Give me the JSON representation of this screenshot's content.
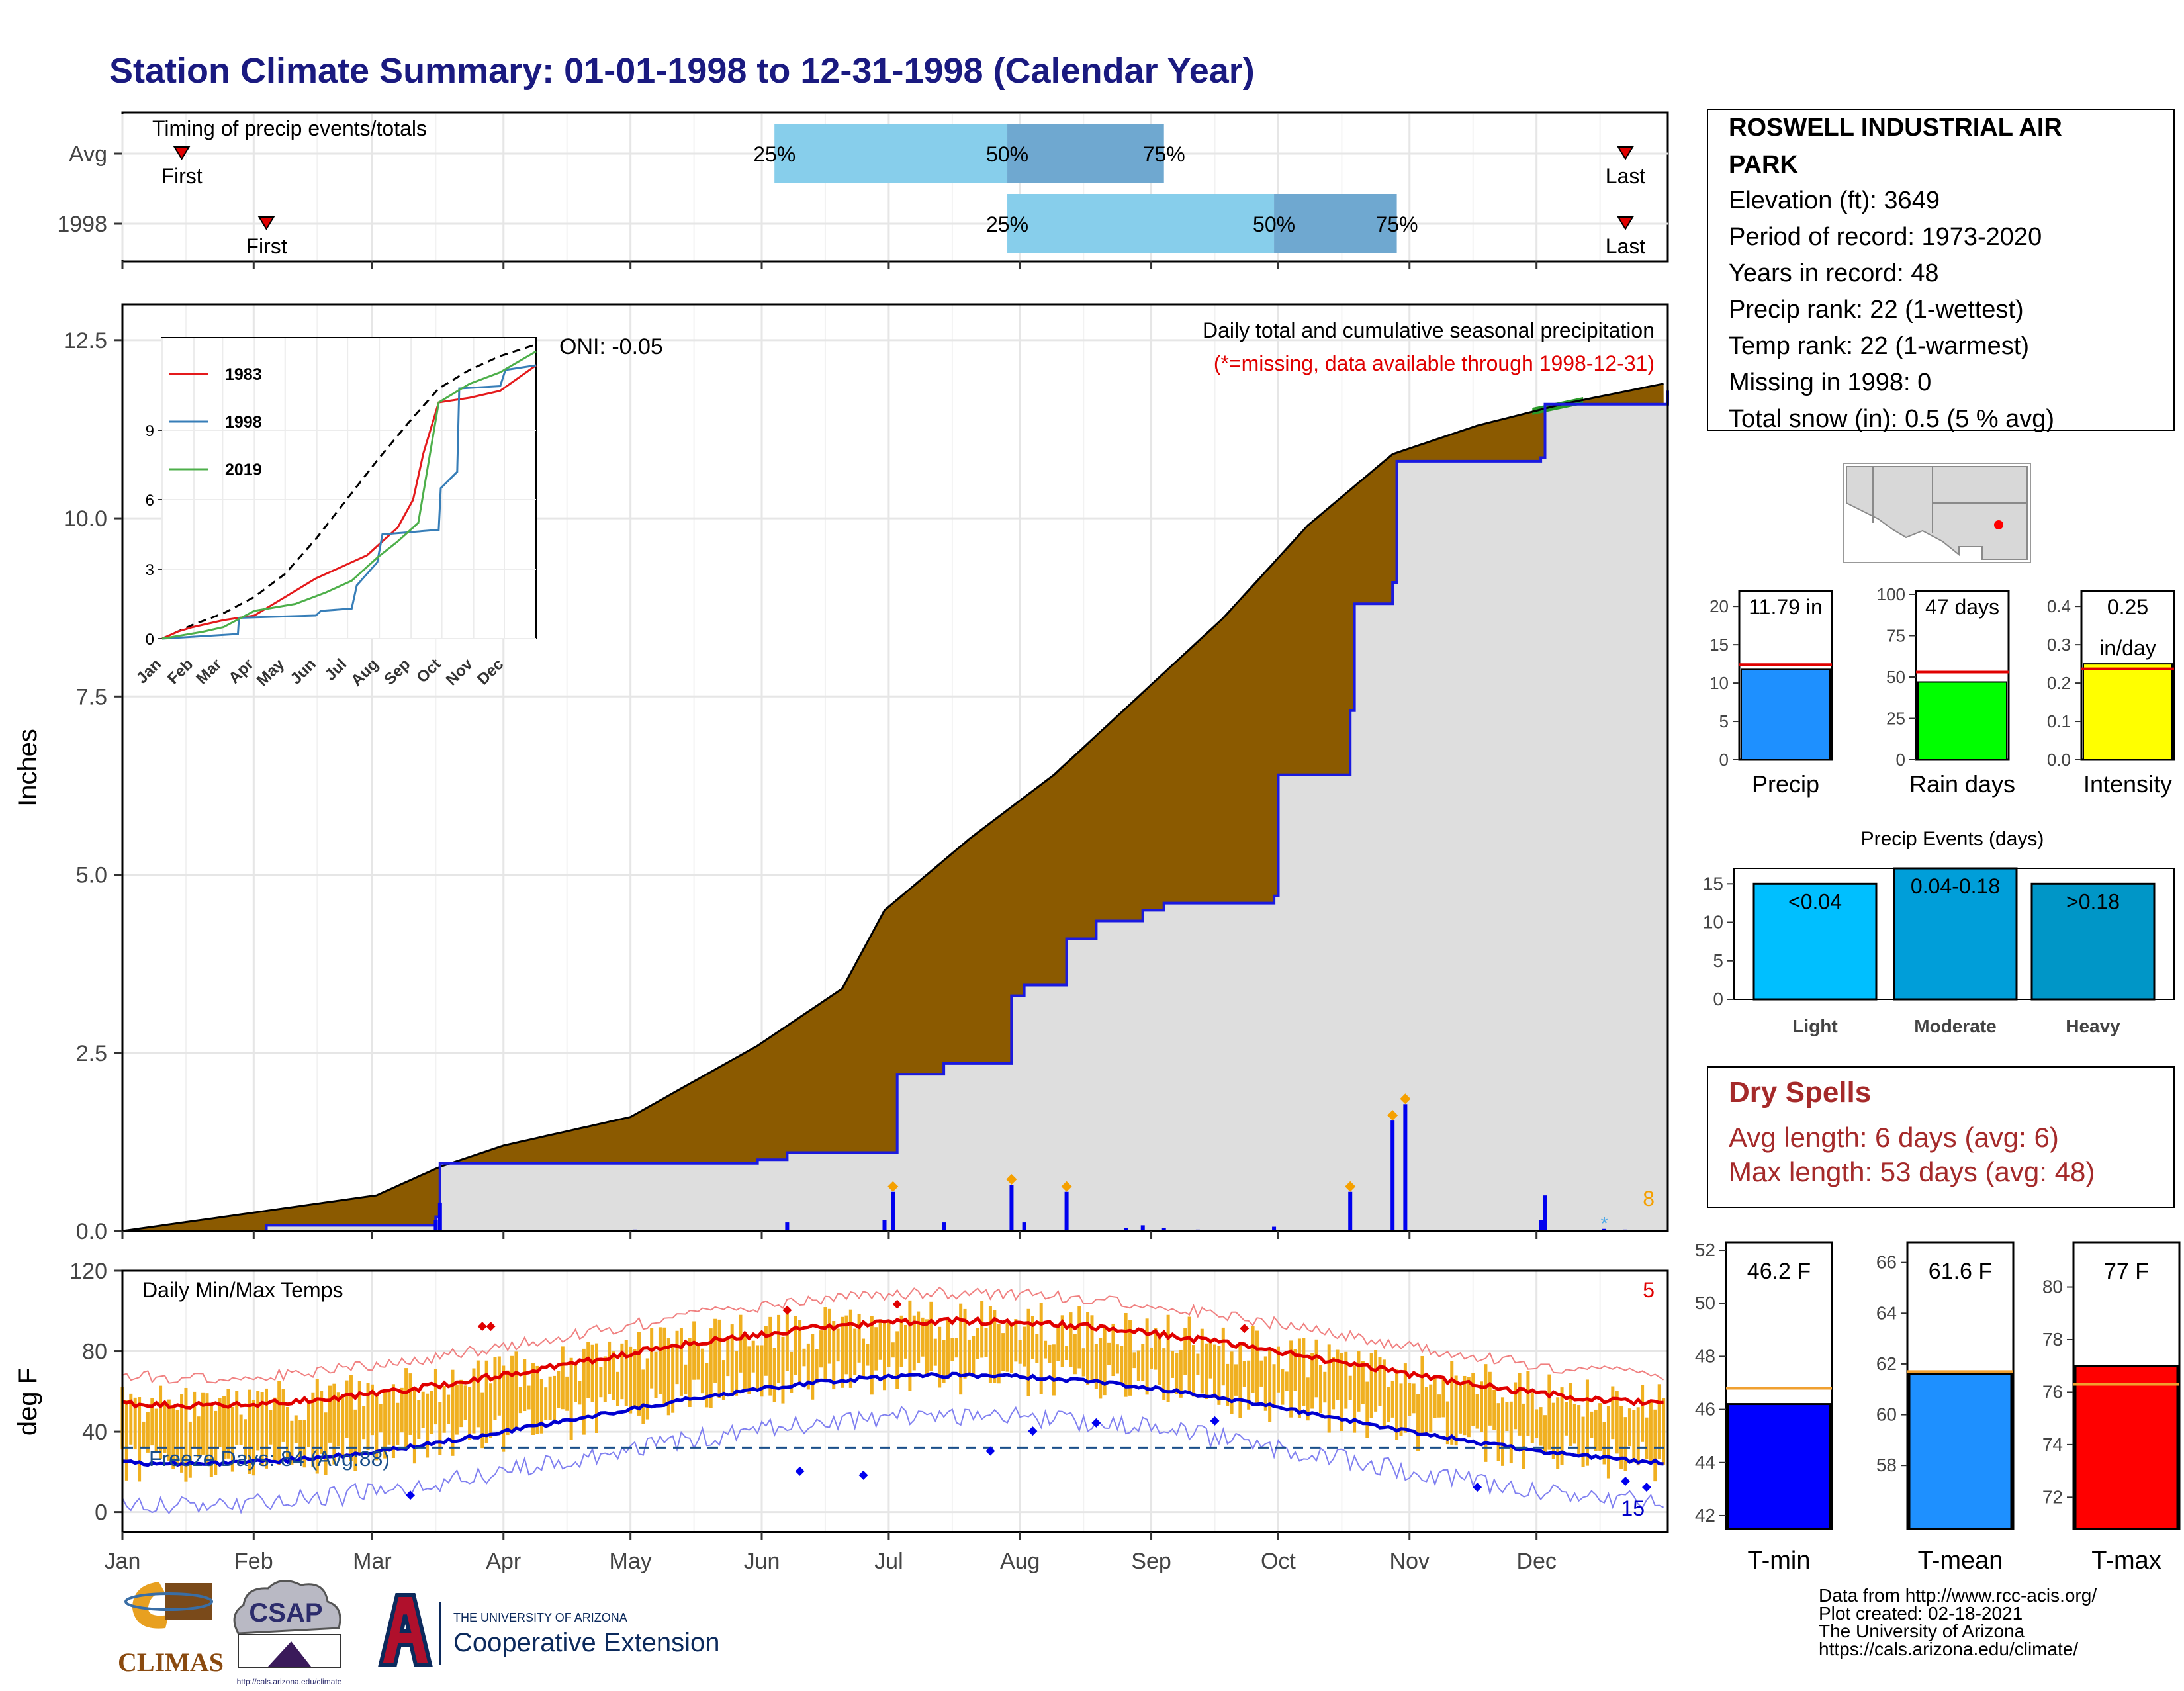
{
  "title": "Station Climate Summary: 01-01-1998 to 12-31-1998 (Calendar Year)",
  "months": [
    "Jan",
    "Feb",
    "Mar",
    "Apr",
    "May",
    "Jun",
    "Jul",
    "Aug",
    "Sep",
    "Oct",
    "Nov",
    "Dec"
  ],
  "timing": {
    "label": "Timing of precip events/totals",
    "rows": [
      {
        "name": "Avg",
        "first_doy": 14,
        "last_doy": 355,
        "q25_doy": 154,
        "q50_doy": 209,
        "q75_doy": 246,
        "first_label": "First",
        "last_label": "Last",
        "q25_label": "25%",
        "q50_label": "50%",
        "q75_label": "75%"
      },
      {
        "name": "1998",
        "first_doy": 34,
        "last_doy": 355,
        "q25_doy": 209,
        "q50_doy": 272,
        "q75_doy": 301,
        "first_label": "First",
        "last_label": "Last",
        "q25_label": "25%",
        "q50_label": "50%",
        "q75_label": "75%"
      }
    ]
  },
  "precip_panel": {
    "ylabel": "Inches",
    "note1": "Daily total and cumulative seasonal precipitation",
    "note2": "(*=missing, data available through 1998-12-31)",
    "corner_count": "8",
    "oni_label": "ONI: -0.05",
    "inset": {
      "series": [
        {
          "name": "1983",
          "color": "#e41a1c",
          "points": [
            [
              0,
              0
            ],
            [
              15,
              0.3
            ],
            [
              30,
              0.5
            ],
            [
              60,
              0.8
            ],
            [
              90,
              1.0
            ],
            [
              120,
              1.8
            ],
            [
              150,
              2.6
            ],
            [
              170,
              3.0
            ],
            [
              200,
              3.6
            ],
            [
              230,
              4.8
            ],
            [
              245,
              6.0
            ],
            [
              255,
              8.0
            ],
            [
              270,
              10.2
            ],
            [
              300,
              10.4
            ],
            [
              330,
              10.7
            ],
            [
              365,
              11.8
            ]
          ]
        },
        {
          "name": "1998",
          "color": "#377eb8",
          "points": [
            [
              0,
              0
            ],
            [
              74,
              0.2
            ],
            [
              75,
              0.9
            ],
            [
              150,
              1.0
            ],
            [
              155,
              1.2
            ],
            [
              185,
              1.3
            ],
            [
              190,
              2.3
            ],
            [
              210,
              3.3
            ],
            [
              215,
              4.5
            ],
            [
              270,
              4.7
            ],
            [
              272,
              6.5
            ],
            [
              288,
              7.2
            ],
            [
              290,
              10.8
            ],
            [
              330,
              10.9
            ],
            [
              335,
              11.6
            ],
            [
              365,
              11.8
            ]
          ]
        },
        {
          "name": "2019",
          "color": "#4daf4a",
          "points": [
            [
              0,
              0
            ],
            [
              40,
              0.3
            ],
            [
              60,
              0.5
            ],
            [
              90,
              1.2
            ],
            [
              130,
              1.5
            ],
            [
              160,
              2.0
            ],
            [
              185,
              2.5
            ],
            [
              210,
              3.5
            ],
            [
              230,
              4.2
            ],
            [
              250,
              5.0
            ],
            [
              270,
              10.2
            ],
            [
              300,
              11.0
            ],
            [
              330,
              11.5
            ],
            [
              365,
              12.4
            ]
          ]
        }
      ],
      "avg_points": [
        [
          0,
          0
        ],
        [
          30,
          0.6
        ],
        [
          60,
          1.1
        ],
        [
          90,
          1.8
        ],
        [
          120,
          2.8
        ],
        [
          150,
          4.3
        ],
        [
          180,
          6.0
        ],
        [
          210,
          7.7
        ],
        [
          240,
          9.3
        ],
        [
          270,
          10.8
        ],
        [
          300,
          11.6
        ],
        [
          330,
          12.2
        ],
        [
          365,
          12.7
        ]
      ]
    },
    "daily_bars": [
      [
        74,
        0.15
      ],
      [
        75,
        0.4
      ],
      [
        121,
        0.02
      ],
      [
        157,
        0.12
      ],
      [
        180,
        0.15
      ],
      [
        182,
        0.55
      ],
      [
        194,
        0.12
      ],
      [
        210,
        0.65
      ],
      [
        213,
        0.12
      ],
      [
        223,
        0.55
      ],
      [
        237,
        0.04
      ],
      [
        241,
        0.08
      ],
      [
        246,
        0.04
      ],
      [
        254,
        0.02
      ],
      [
        272,
        0.06
      ],
      [
        290,
        0.55
      ],
      [
        300,
        1.55
      ],
      [
        303,
        1.78
      ],
      [
        335,
        0.15
      ],
      [
        336,
        0.5
      ],
      [
        350,
        0.03
      ],
      [
        355,
        0.02
      ]
    ]
  },
  "temp_panel": {
    "title": "Daily Min/Max Temps",
    "ylabel": "deg F",
    "freeze_label": "Freeze Days: 84 (Avg:88)",
    "count_high": "5",
    "count_low": "15"
  },
  "station": {
    "name": "ROSWELL INDUSTRIAL AIR PARK",
    "lines": [
      "Elevation (ft): 3649",
      "Period of record: 1973-2020",
      "Years in record: 48",
      "Precip rank: 22 (1-wettest)",
      "Temp rank: 22 (1-warmest)",
      "Missing in 1998: 0",
      "Total snow (in): 0.5 (5 % avg)"
    ]
  },
  "mini_bars": [
    {
      "label": "Precip",
      "value_label": "11.79 in",
      "value": 11.79,
      "avg": 12.4,
      "ylim": [
        0,
        22
      ],
      "ticks": [
        0,
        5,
        10,
        15,
        20
      ],
      "color": "#1e90ff"
    },
    {
      "label": "Rain days",
      "value_label": "47 days",
      "value": 47,
      "avg": 53,
      "ylim": [
        0,
        102
      ],
      "ticks": [
        0,
        25,
        50,
        75,
        100
      ],
      "color": "#00ff00"
    },
    {
      "label": "Intensity",
      "value_label": "0.25",
      "value_label2": "in/day",
      "value": 0.25,
      "avg": 0.237,
      "ylim": [
        0,
        0.44
      ],
      "ticks": [
        "0.0",
        "0.1",
        "0.2",
        "0.3",
        "0.4"
      ],
      "color": "#ffff00"
    }
  ],
  "events": {
    "title": "Precip Events (days)",
    "ylim": [
      0,
      17
    ],
    "ticks": [
      0,
      5,
      10,
      15
    ],
    "items": [
      {
        "label": "Light",
        "value_label": "<0.04",
        "value": 15,
        "color": "#00bfff"
      },
      {
        "label": "Moderate",
        "value_label": "0.04-0.18",
        "value": 17,
        "color": "#009ed9"
      },
      {
        "label": "Heavy",
        "value_label": ">0.18",
        "value": 15,
        "color": "#0096c7"
      }
    ]
  },
  "dry_spells": {
    "title": "Dry Spells",
    "lines": [
      "Avg length: 6 days (avg: 6)",
      "Max length: 53 days (avg: 48)"
    ]
  },
  "temp_bars": [
    {
      "label": "T-min",
      "value_label": "46.2 F",
      "value": 46.2,
      "avg": 46.8,
      "ylim": [
        41.5,
        52.3
      ],
      "ticks": [
        42,
        44,
        46,
        48,
        50,
        52
      ],
      "color": "#0000ff"
    },
    {
      "label": "T-mean",
      "value_label": "61.6 F",
      "value": 61.6,
      "avg": 61.7,
      "ylim": [
        55.5,
        66.8
      ],
      "ticks": [
        58,
        60,
        62,
        64,
        66
      ],
      "color": "#1e90ff"
    },
    {
      "label": "T-max",
      "value_label": "77 F",
      "value": 77.0,
      "avg": 76.3,
      "ylim": [
        70.8,
        81.7
      ],
      "ticks": [
        72,
        74,
        76,
        78,
        80
      ],
      "color": "#ff0000"
    }
  ],
  "credits": [
    "Data from http://www.rcc-acis.org/",
    "Plot created: 02-18-2021",
    "The University of Arizona",
    "https://cals.arizona.edu/climate/"
  ],
  "logos": {
    "climas": "CLIMAS",
    "csap": "CSAP",
    "csap_url": "http://cals.arizona.edu/climate",
    "ua_small": "THE UNIVERSITY OF ARIZONA",
    "ua_big": "Cooperative Extension"
  },
  "chart_data": [
    {
      "type": "area",
      "title": "Daily total and cumulative seasonal precipitation",
      "ylabel": "Inches",
      "ylim": [
        0,
        13
      ],
      "x_categories": [
        "Jan",
        "Feb",
        "Mar",
        "Apr",
        "May",
        "Jun",
        "Jul",
        "Aug",
        "Sep",
        "Oct",
        "Nov",
        "Dec"
      ],
      "series": [
        {
          "name": "avg",
          "points_doy_inches": [
            [
              0,
              0
            ],
            [
              30,
              0.25
            ],
            [
              60,
              0.5
            ],
            [
              75,
              0.9
            ],
            [
              90,
              1.2
            ],
            [
              120,
              1.6
            ],
            [
              150,
              2.6
            ],
            [
              170,
              3.4
            ],
            [
              180,
              4.5
            ],
            [
              200,
              5.5
            ],
            [
              220,
              6.4
            ],
            [
              240,
              7.5
            ],
            [
              260,
              8.6
            ],
            [
              280,
              9.9
            ],
            [
              300,
              10.9
            ],
            [
              320,
              11.3
            ],
            [
              340,
              11.6
            ],
            [
              365,
              11.9
            ]
          ]
        },
        {
          "name": "1998",
          "points_doy_inches": [
            [
              0,
              0
            ],
            [
              34,
              0.08
            ],
            [
              74,
              0.2
            ],
            [
              75,
              0.95
            ],
            [
              150,
              1.0
            ],
            [
              157,
              1.1
            ],
            [
              182,
              1.1
            ],
            [
              183,
              2.2
            ],
            [
              194,
              2.35
            ],
            [
              210,
              3.3
            ],
            [
              213,
              3.45
            ],
            [
              223,
              4.1
            ],
            [
              230,
              4.35
            ],
            [
              241,
              4.5
            ],
            [
              246,
              4.6
            ],
            [
              272,
              4.7
            ],
            [
              273,
              6.4
            ],
            [
              290,
              7.3
            ],
            [
              291,
              8.8
            ],
            [
              300,
              9.1
            ],
            [
              301,
              10.8
            ],
            [
              303,
              10.8
            ],
            [
              335,
              10.85
            ],
            [
              336,
              11.6
            ],
            [
              365,
              11.79
            ]
          ]
        }
      ]
    },
    {
      "type": "bar",
      "title": "Daily Min/Max Temps",
      "ylabel": "deg F",
      "ylim": [
        -10,
        120
      ],
      "x_categories": [
        "Jan",
        "Feb",
        "Mar",
        "Apr",
        "May",
        "Jun",
        "Jul",
        "Aug",
        "Sep",
        "Oct",
        "Nov",
        "Dec"
      ]
    }
  ]
}
